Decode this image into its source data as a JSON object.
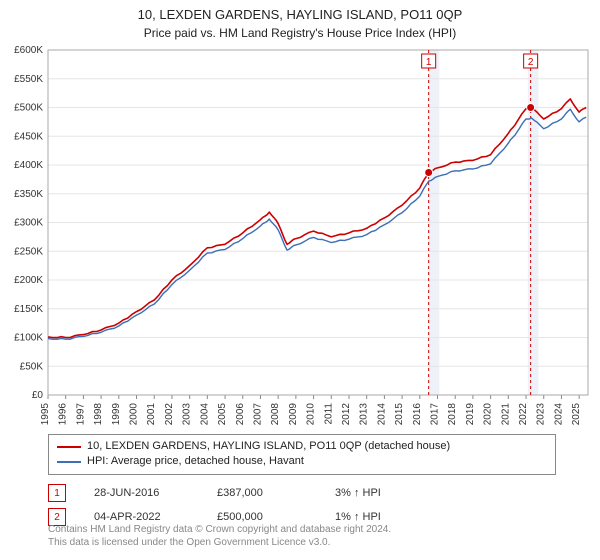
{
  "title": "10, LEXDEN GARDENS, HAYLING ISLAND, PO11 0QP",
  "subtitle": "Price paid vs. HM Land Registry's House Price Index (HPI)",
  "chart": {
    "type": "line",
    "background_color": "#ffffff",
    "plot_border_color": "#aaaaaa",
    "grid_color": "#e6e6e6",
    "xlim": [
      1995,
      2025.5
    ],
    "ylim": [
      0,
      600000
    ],
    "ytick_step": 50000,
    "yticks": [
      "£0",
      "£50K",
      "£100K",
      "£150K",
      "£200K",
      "£250K",
      "£300K",
      "£350K",
      "£400K",
      "£450K",
      "£500K",
      "£550K",
      "£600K"
    ],
    "xticks": [
      "1995",
      "1996",
      "1997",
      "1998",
      "1999",
      "2000",
      "2001",
      "2002",
      "2003",
      "2004",
      "2005",
      "2006",
      "2007",
      "2008",
      "2009",
      "2010",
      "2011",
      "2012",
      "2013",
      "2014",
      "2015",
      "2016",
      "2017",
      "2018",
      "2019",
      "2020",
      "2021",
      "2022",
      "2023",
      "2024",
      "2025"
    ],
    "label_fontsize": 10,
    "series": [
      {
        "name": "property",
        "label": "10, LEXDEN GARDENS, HAYLING ISLAND, PO11 0QP (detached house)",
        "color": "#cc0000",
        "line_width": 1.6,
        "years": [
          1995,
          1996,
          1997,
          1998,
          1999,
          2000,
          2001,
          2002,
          2003,
          2004,
          2005,
          2006,
          2007,
          2007.5,
          2008,
          2008.5,
          2009,
          2010,
          2011,
          2012,
          2013,
          2014,
          2015,
          2016,
          2016.5,
          2017,
          2018,
          2019,
          2020,
          2021,
          2021.5,
          2022,
          2022.3,
          2023,
          2024,
          2024.5,
          2025,
          2025.4
        ],
        "values": [
          101000,
          100000,
          105000,
          113000,
          125000,
          145000,
          165000,
          200000,
          225000,
          256000,
          262000,
          282000,
          305000,
          318000,
          298000,
          262000,
          272000,
          285000,
          275000,
          282000,
          290000,
          308000,
          330000,
          360000,
          387000,
          395000,
          405000,
          408000,
          418000,
          455000,
          476000,
          498000,
          500000,
          480000,
          498000,
          515000,
          492000,
          500000
        ]
      },
      {
        "name": "hpi",
        "label": "HPI: Average price, detached house, Havant",
        "color": "#3b6fb6",
        "line_width": 1.4,
        "years": [
          1995,
          1996,
          1997,
          1998,
          1999,
          2000,
          2001,
          2002,
          2003,
          2004,
          2005,
          2006,
          2007,
          2007.5,
          2008,
          2008.5,
          2009,
          2010,
          2011,
          2012,
          2013,
          2014,
          2015,
          2016,
          2016.5,
          2017,
          2018,
          2019,
          2020,
          2021,
          2021.5,
          2022,
          2022.3,
          2023,
          2024,
          2024.5,
          2025,
          2025.4
        ],
        "values": [
          98000,
          97000,
          102000,
          109000,
          120000,
          139000,
          158000,
          192000,
          217000,
          247000,
          253000,
          272000,
          294000,
          306000,
          287000,
          252000,
          261000,
          274000,
          265000,
          271000,
          279000,
          296000,
          317000,
          346000,
          372000,
          380000,
          390000,
          393000,
          402000,
          438000,
          458000,
          480000,
          482000,
          463000,
          480000,
          497000,
          475000,
          483000
        ]
      }
    ],
    "highlight_bands": [
      {
        "from": 2016.5,
        "to": 2017.1,
        "color": "#eef1f8"
      },
      {
        "from": 2022.1,
        "to": 2022.7,
        "color": "#eef1f8"
      }
    ],
    "markers": [
      {
        "year": 2016.5,
        "value": 387000,
        "label": "1",
        "color": "#cc0000",
        "line_color": "#cc0000"
      },
      {
        "year": 2022.26,
        "value": 500000,
        "label": "2",
        "color": "#cc0000",
        "line_color": "#cc0000"
      }
    ],
    "marker_dot_radius": 4,
    "marker_box_size": 14,
    "marker_box_border": "#cc0000",
    "marker_box_text_color": "#cc0000"
  },
  "legend": {
    "items": [
      {
        "color": "#cc0000",
        "label": "10, LEXDEN GARDENS, HAYLING ISLAND, PO11 0QP (detached house)"
      },
      {
        "color": "#3b6fb6",
        "label": "HPI: Average price, detached house, Havant"
      }
    ]
  },
  "events": [
    {
      "num": "1",
      "date": "28-JUN-2016",
      "price": "£387,000",
      "hpi": "3% ↑ HPI",
      "box_color": "#cc0000"
    },
    {
      "num": "2",
      "date": "04-APR-2022",
      "price": "£500,000",
      "hpi": "1% ↑ HPI",
      "box_color": "#cc0000"
    }
  ],
  "footnote": {
    "line1": "Contains HM Land Registry data © Crown copyright and database right 2024.",
    "line2": "This data is licensed under the Open Government Licence v3.0."
  }
}
